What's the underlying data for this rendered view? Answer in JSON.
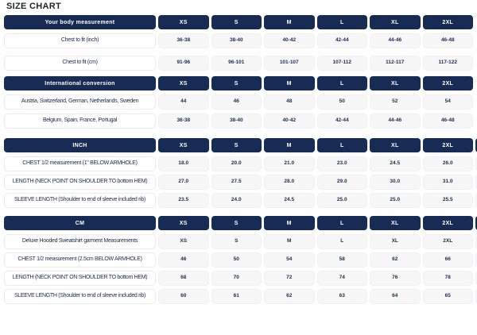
{
  "page": {
    "title": "SIZE CHART"
  },
  "colors": {
    "header_pill": "#172B54",
    "value_cell_bg": "#F7F7F8",
    "text": "#1C2B52",
    "title_text": "#23252D"
  },
  "sizes": [
    "XS",
    "S",
    "M",
    "L",
    "XL",
    "2XL"
  ],
  "sections": [
    {
      "header": "Your body measurement",
      "rows": [
        {
          "label": "Chest to fit (inch)",
          "values": [
            "36-38",
            "38-40",
            "40-42",
            "42-44",
            "44-46",
            "46-48"
          ]
        },
        {
          "label": "Chest to fit (cm)",
          "values": [
            "91-96",
            "96-101",
            "101-107",
            "107-112",
            "112-117",
            "117-122"
          ]
        }
      ]
    },
    {
      "header": "International conversion",
      "rows": [
        {
          "label": "Austria, Switzerland, German, Netherlands, Sweden",
          "values": [
            "44",
            "46",
            "48",
            "50",
            "52",
            "54"
          ]
        },
        {
          "label": "Belgium, Spain, France, Portugal",
          "values": [
            "36-38",
            "38-40",
            "40-42",
            "42-44",
            "44-46",
            "46-48"
          ]
        }
      ]
    },
    {
      "header": "INCH",
      "rows": [
        {
          "label": "CHEST 1/2 measurement (1\" BELOW ARMHOLE)",
          "values": [
            "18.0",
            "20.0",
            "21.0",
            "23.0",
            "24.5",
            "26.0"
          ]
        },
        {
          "label": "LENGTH (NECK POINT ON SHOULDER TO bottom HEM)",
          "values": [
            "27.0",
            "27.5",
            "28.0",
            "29.0",
            "30.0",
            "31.0"
          ]
        },
        {
          "label": "SLEEVE LENGTH (Shoulder to end of sleeve included rib)",
          "values": [
            "23.5",
            "24.0",
            "24.5",
            "25.0",
            "25.0",
            "25.5"
          ]
        }
      ]
    },
    {
      "header": "CM",
      "rows": [
        {
          "label": "Deluxe Hooded Sweatshirt garment Measurements",
          "values": [
            "XS",
            "S",
            "M",
            "L",
            "XL",
            "2XL"
          ]
        },
        {
          "label": "CHEST 1/2 measurement (2.5cm BELOW ARMHOLE)",
          "values": [
            "46",
            "50",
            "54",
            "58",
            "62",
            "66"
          ]
        },
        {
          "label": "LENGTH (NECK POINT ON SHOULDER TO bottom HEM)",
          "values": [
            "68",
            "70",
            "72",
            "74",
            "76",
            "78"
          ]
        },
        {
          "label": "SLEEVE LENGTH (Shoulder to end of sleeve included rib)",
          "values": [
            "60",
            "61",
            "62",
            "63",
            "64",
            "65"
          ]
        }
      ]
    }
  ]
}
